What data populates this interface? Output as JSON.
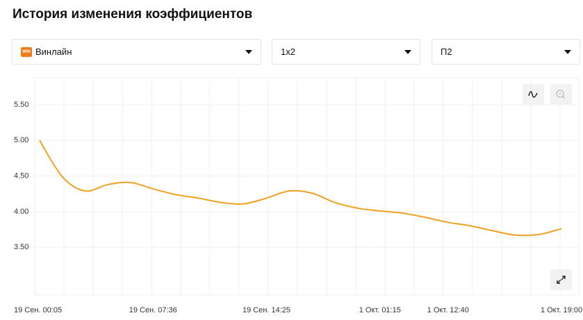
{
  "header": {
    "title": "История изменения коэффициентов"
  },
  "selects": [
    {
      "label": "Винлайн",
      "icon": "WIN"
    },
    {
      "label": "1х2"
    },
    {
      "label": "П2"
    }
  ],
  "chart_data": {
    "type": "line",
    "categories": [
      "19 Сен. 00:05",
      null,
      null,
      null,
      null,
      "19 Сен. 07:36",
      null,
      null,
      null,
      null,
      "19 Сен. 14:25",
      null,
      null,
      null,
      null,
      "1 Окт. 01:15",
      null,
      null,
      "1 Окт. 12:40",
      null,
      null,
      null,
      null,
      "1 Окт. 19:00"
    ],
    "series": [
      {
        "color": "#f0a01e",
        "values": [
          5.0,
          4.49,
          4.29,
          4.38,
          4.41,
          4.32,
          4.24,
          4.19,
          4.13,
          4.11,
          4.19,
          4.29,
          4.26,
          4.13,
          4.05,
          4.01,
          3.98,
          3.92,
          3.85,
          3.8,
          3.73,
          3.67,
          3.68,
          3.76
        ]
      }
    ],
    "ylim": [
      2.83,
      5.88
    ],
    "yticks": [
      {
        "value": 3.5,
        "label": "3.50"
      },
      {
        "value": 4,
        "label": "4.00"
      },
      {
        "value": 4.5,
        "label": "4.50"
      },
      {
        "value": 5,
        "label": "5.00"
      },
      {
        "value": 5.5,
        "label": "5.50"
      }
    ],
    "grid": true
  }
}
